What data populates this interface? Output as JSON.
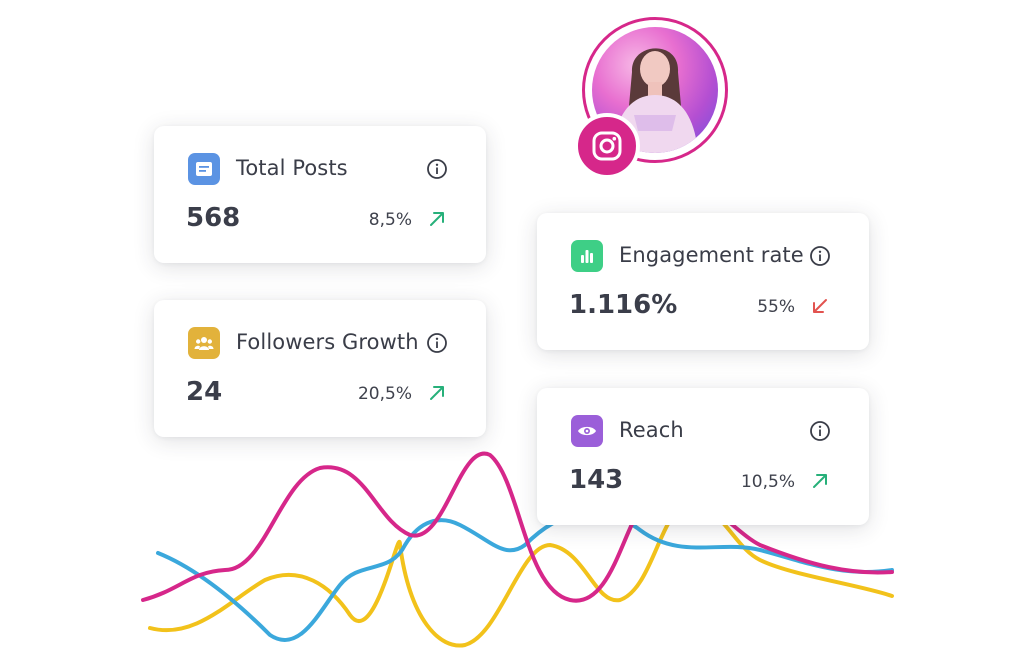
{
  "colors": {
    "pink": "#d6278a",
    "blue": "#3ba8dc",
    "yellow": "#f2c21b",
    "up": "#27b07a",
    "down": "#e2534f"
  },
  "cards": {
    "total_posts": {
      "title": "Total Posts",
      "value": "568",
      "change": "8,5%",
      "trend": "up",
      "icon": "document-icon"
    },
    "followers": {
      "title": "Followers Growth",
      "value": "24",
      "change": "20,5%",
      "trend": "up",
      "icon": "users-icon"
    },
    "engagement": {
      "title": "Engagement rate",
      "value": "1.116%",
      "change": "55%",
      "trend": "down",
      "icon": "bar-chart-icon"
    },
    "reach": {
      "title": "Reach",
      "value": "143",
      "change": "10,5%",
      "trend": "up",
      "icon": "eye-icon"
    }
  },
  "profile": {
    "avatar": "avatar",
    "badge": "instagram-icon"
  }
}
